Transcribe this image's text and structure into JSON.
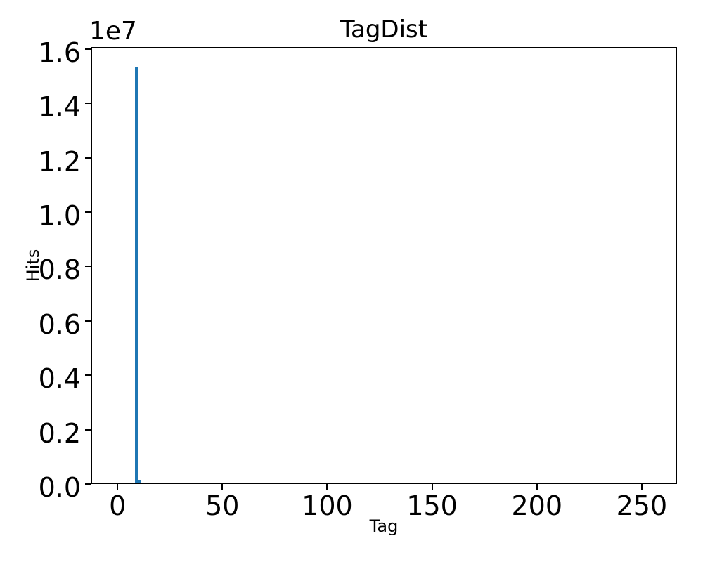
{
  "figure": {
    "background_color": "#ffffff",
    "spine_color": "#000000",
    "text_color": "#000000"
  },
  "chart_data": {
    "type": "bar",
    "title": "TagDist",
    "xlabel": "Tag",
    "ylabel": "Hits",
    "y_offset_text": "1e7",
    "y_scale_factor": 10000000,
    "bar_color": "#1f77b4",
    "grid": false,
    "legend": false,
    "xlim": [
      -12.8,
      266.8
    ],
    "ylim": [
      0,
      16070000
    ],
    "xticks": {
      "values": [
        0,
        50,
        100,
        150,
        200,
        250
      ],
      "labels": [
        "0",
        "50",
        "100",
        "150",
        "200",
        "250"
      ]
    },
    "yticks": {
      "values": [
        0,
        2000000,
        4000000,
        6000000,
        8000000,
        10000000,
        12000000,
        14000000,
        16000000
      ],
      "labels": [
        "0.0",
        "0.2",
        "0.4",
        "0.6",
        "0.8",
        "1.0",
        "1.2",
        "1.4",
        "1.6"
      ]
    },
    "bars": [
      {
        "x_center": 9.2,
        "width": 1.7,
        "hits": 15300000
      },
      {
        "x_center": 10.8,
        "width": 1.4,
        "hits": 110000
      }
    ]
  }
}
